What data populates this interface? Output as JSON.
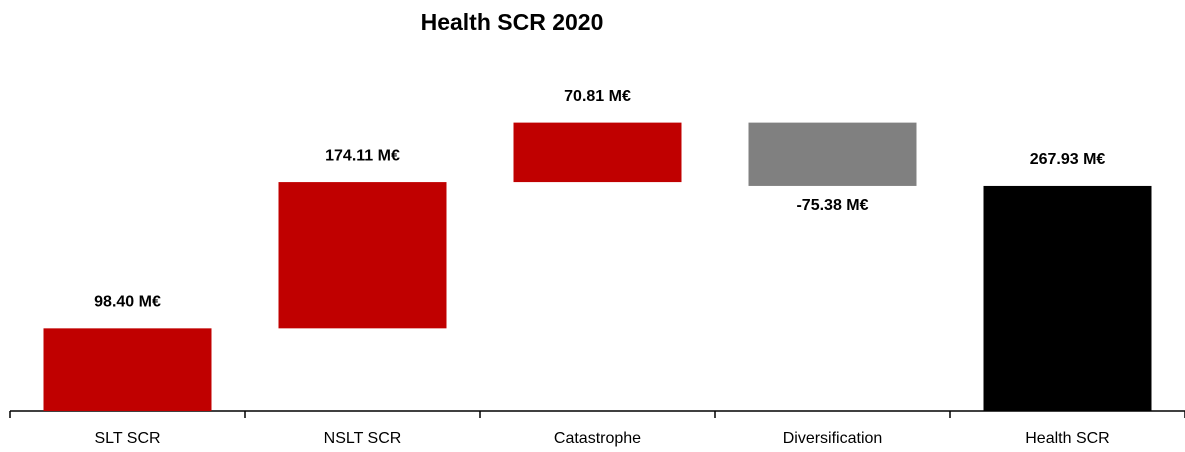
{
  "chart_data": {
    "type": "waterfall",
    "title": "Health SCR 2020",
    "categories": [
      "SLT SCR",
      "NSLT SCR",
      "Catastrophe",
      "Diversification",
      "Health SCR"
    ],
    "values": [
      98.4,
      174.11,
      70.81,
      -75.38,
      267.93
    ],
    "value_labels": [
      "98.40 M€",
      "174.11 M€",
      "70.81 M€",
      "-75.38 M€",
      "267.93 M€"
    ],
    "measures": [
      "relative",
      "relative",
      "relative",
      "relative",
      "total"
    ],
    "colors": [
      "#c00000",
      "#c00000",
      "#c00000",
      "#808080",
      "#000000"
    ]
  }
}
